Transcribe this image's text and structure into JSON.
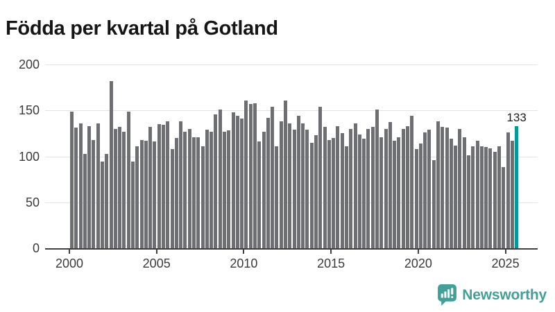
{
  "title": "Födda per kvartal på Gotland",
  "chart_data": {
    "type": "bar",
    "title": "Födda per kvartal på Gotland",
    "frequency": "quarterly",
    "x_range": [
      "2000 Q1",
      "2025 Q3"
    ],
    "x_tick_labels": [
      "2000",
      "2005",
      "2010",
      "2015",
      "2020",
      "2025"
    ],
    "y_ticks": [
      0,
      50,
      100,
      150,
      200
    ],
    "ylim": [
      0,
      200
    ],
    "grid": true,
    "bar_color": "#6e6f72",
    "highlight_color": "#009a98",
    "highlight_label": "133",
    "series": [
      {
        "year": 2000,
        "values": [
          149,
          131,
          136,
          103
        ]
      },
      {
        "year": 2001,
        "values": [
          133,
          118,
          136,
          94
        ]
      },
      {
        "year": 2002,
        "values": [
          103,
          182,
          130,
          132
        ]
      },
      {
        "year": 2003,
        "values": [
          127,
          149,
          94,
          111
        ]
      },
      {
        "year": 2004,
        "values": [
          118,
          117,
          132,
          116
        ]
      },
      {
        "year": 2005,
        "values": [
          135,
          134,
          138,
          108
        ]
      },
      {
        "year": 2006,
        "values": [
          120,
          138,
          127,
          130
        ]
      },
      {
        "year": 2007,
        "values": [
          121,
          121,
          111,
          129
        ]
      },
      {
        "year": 2008,
        "values": [
          127,
          146,
          151,
          127
        ]
      },
      {
        "year": 2009,
        "values": [
          128,
          148,
          144,
          141
        ]
      },
      {
        "year": 2010,
        "values": [
          161,
          157,
          158,
          116
        ]
      },
      {
        "year": 2011,
        "values": [
          127,
          142,
          154,
          111
        ]
      },
      {
        "year": 2012,
        "values": [
          138,
          161,
          136,
          129
        ]
      },
      {
        "year": 2013,
        "values": [
          144,
          136,
          129,
          115
        ]
      },
      {
        "year": 2014,
        "values": [
          123,
          154,
          132,
          118
        ]
      },
      {
        "year": 2015,
        "values": [
          120,
          133,
          125,
          111
        ]
      },
      {
        "year": 2016,
        "values": [
          130,
          136,
          124,
          119
        ]
      },
      {
        "year": 2017,
        "values": [
          130,
          132,
          151,
          121
        ]
      },
      {
        "year": 2018,
        "values": [
          130,
          137,
          117,
          121
        ]
      },
      {
        "year": 2019,
        "values": [
          130,
          133,
          144,
          108
        ]
      },
      {
        "year": 2020,
        "values": [
          114,
          126,
          129,
          96
        ]
      },
      {
        "year": 2021,
        "values": [
          138,
          132,
          131,
          119
        ]
      },
      {
        "year": 2022,
        "values": [
          112,
          130,
          121,
          101
        ]
      },
      {
        "year": 2023,
        "values": [
          111,
          117,
          111,
          110
        ]
      },
      {
        "year": 2024,
        "values": [
          109,
          105,
          111,
          88
        ]
      },
      {
        "year": 2025,
        "values": [
          126,
          117,
          133
        ]
      }
    ]
  },
  "branding": {
    "logo_text": "Newsworthy",
    "logo_color": "#41a098",
    "logo_icon": "bar-chart-speech-bubble-icon"
  }
}
